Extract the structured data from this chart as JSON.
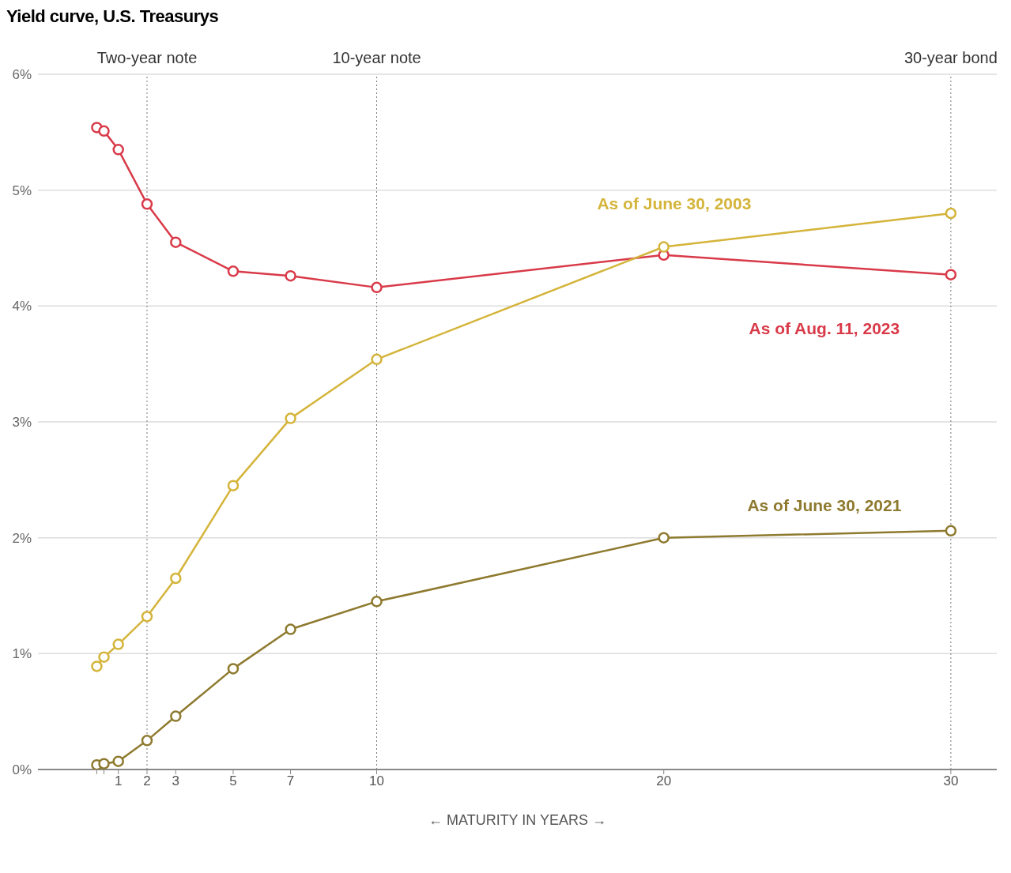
{
  "chart_data": {
    "type": "line",
    "title": "Yield curve, U.S. Treasurys",
    "xlabel": "← MATURITY IN YEARS →",
    "x": [
      0.25,
      0.5,
      1,
      2,
      3,
      5,
      7,
      10,
      20,
      30
    ],
    "series": [
      {
        "name": "As of Aug. 11, 2023",
        "color": "#d93a49",
        "values": [
          5.54,
          5.51,
          5.35,
          4.88,
          4.55,
          4.3,
          4.26,
          4.16,
          4.44,
          4.27
        ]
      },
      {
        "name": "As of June 30, 2003",
        "color": "#d4b43a",
        "values": [
          0.89,
          0.97,
          1.08,
          1.32,
          1.65,
          2.45,
          3.03,
          3.54,
          4.51,
          4.8
        ]
      },
      {
        "name": "As of June 30, 2021",
        "color": "#8e7a2f",
        "values": [
          0.04,
          0.05,
          0.07,
          0.25,
          0.46,
          0.87,
          1.21,
          1.45,
          2.0,
          2.06
        ]
      }
    ],
    "xlim": [
      -1.8,
      31.6
    ],
    "xticks": [
      {
        "value": 0.25,
        "label": null
      },
      {
        "value": 0.5,
        "label": null
      },
      1,
      2,
      3,
      5,
      7,
      10,
      20,
      30
    ],
    "ylim": [
      0,
      6
    ],
    "yticks": [
      {
        "value": 0,
        "label": "0%"
      },
      {
        "value": 1,
        "label": "1%"
      },
      {
        "value": 2,
        "label": "2%"
      },
      {
        "value": 3,
        "label": "3%"
      },
      {
        "value": 4,
        "label": "4%"
      },
      {
        "value": 5,
        "label": "5%"
      },
      {
        "value": 6,
        "label": "6%"
      }
    ],
    "ref_lines": [
      {
        "axis": "x",
        "value": 2,
        "label": "Two-year note",
        "line_style": "dotted"
      },
      {
        "axis": "x",
        "value": 10,
        "label": "10-year note",
        "line_style": "dotted"
      },
      {
        "axis": "x",
        "value": 30,
        "label": "30-year bond",
        "line_style": "dotted"
      }
    ],
    "grid": "y",
    "legend": false,
    "marker": "circle",
    "line_style": "solid"
  }
}
